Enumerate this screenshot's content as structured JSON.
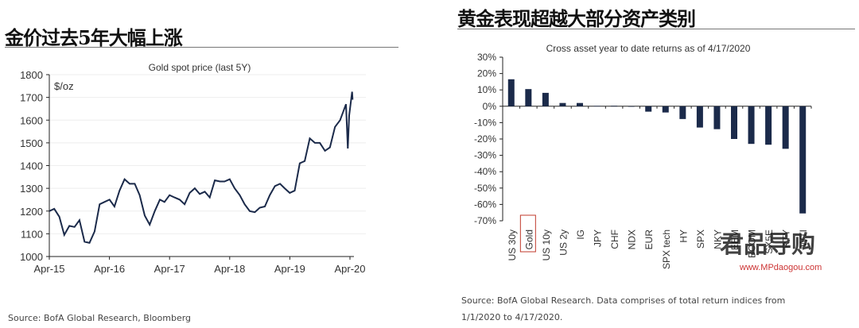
{
  "headings": {
    "left": "金价过去5年大幅上涨",
    "right": "黄金表现超越大部分资产类别"
  },
  "sources": {
    "left": "Source: BofA Global Research, Bloomberg",
    "right_line1": "Source: BofA Global Research. Data comprises of total return indices from",
    "right_line2": "1/1/2020 to 4/17/2020."
  },
  "watermark": {
    "logo": "君品导购",
    "url": "www.MPdaogou.com"
  },
  "chart_data": [
    {
      "type": "line",
      "title": "Gold spot price (last 5Y)",
      "ylabel": "$/oz",
      "ylim": [
        1000,
        1800
      ],
      "yticks": [
        "1000",
        "1100",
        "1200",
        "1300",
        "1400",
        "1500",
        "1600",
        "1700",
        "1800"
      ],
      "xticks": [
        "Apr-15",
        "Apr-16",
        "Apr-17",
        "Apr-18",
        "Apr-19",
        "Apr-20"
      ],
      "grid": true,
      "color": "#1b2a4a",
      "x": [
        "2015-04",
        "2015-05",
        "2015-06",
        "2015-07",
        "2015-08",
        "2015-09",
        "2015-10",
        "2015-11",
        "2015-12",
        "2016-01",
        "2016-02",
        "2016-03",
        "2016-04",
        "2016-05",
        "2016-06",
        "2016-07",
        "2016-08",
        "2016-09",
        "2016-10",
        "2016-11",
        "2016-12",
        "2017-01",
        "2017-02",
        "2017-03",
        "2017-04",
        "2017-05",
        "2017-06",
        "2017-07",
        "2017-08",
        "2017-09",
        "2017-10",
        "2017-11",
        "2017-12",
        "2018-01",
        "2018-02",
        "2018-03",
        "2018-04",
        "2018-05",
        "2018-06",
        "2018-07",
        "2018-08",
        "2018-09",
        "2018-10",
        "2018-11",
        "2018-12",
        "2019-01",
        "2019-02",
        "2019-03",
        "2019-04",
        "2019-05",
        "2019-06",
        "2019-07",
        "2019-08",
        "2019-09",
        "2019-10",
        "2019-11",
        "2019-12",
        "2020-01",
        "2020-02",
        "2020-03-08",
        "2020-03-19",
        "2020-03-27",
        "2020-04-14",
        "2020-04-17"
      ],
      "y": [
        1200,
        1210,
        1175,
        1095,
        1135,
        1130,
        1160,
        1065,
        1060,
        1110,
        1230,
        1240,
        1250,
        1220,
        1290,
        1340,
        1320,
        1320,
        1270,
        1180,
        1140,
        1200,
        1250,
        1240,
        1270,
        1260,
        1250,
        1230,
        1280,
        1300,
        1275,
        1285,
        1260,
        1335,
        1330,
        1330,
        1340,
        1300,
        1270,
        1230,
        1200,
        1195,
        1215,
        1220,
        1270,
        1310,
        1320,
        1300,
        1280,
        1290,
        1410,
        1420,
        1520,
        1500,
        1500,
        1465,
        1480,
        1570,
        1600,
        1670,
        1475,
        1620,
        1725,
        1690
      ]
    },
    {
      "type": "bar",
      "title": "Cross asset year to date returns as of 4/17/2020",
      "ylim": [
        -70,
        30
      ],
      "yticks": [
        "30%",
        "20%",
        "10%",
        "0%",
        "-10%",
        "-20%",
        "-30%",
        "-40%",
        "-50%",
        "-60%",
        "-70%"
      ],
      "categories": [
        "US 30y",
        "Gold",
        "US 10y",
        "US 2y",
        "IG",
        "JPY",
        "CHF",
        "NDX",
        "EUR",
        "SPX tech",
        "HY",
        "SPX",
        "NKY",
        "EEM",
        "BCOM",
        "SX5E",
        "RTY",
        "WTI"
      ],
      "values": [
        16.5,
        10.5,
        8.2,
        2,
        2,
        0.2,
        0.3,
        -0.2,
        -3.3,
        -3.8,
        -7.8,
        -13,
        -14,
        -20,
        -23,
        -23.5,
        -26,
        -65.5
      ],
      "highlight": "Gold",
      "highlight_color": "#c0392b",
      "color": "#1b2a4a",
      "grid": false
    }
  ]
}
